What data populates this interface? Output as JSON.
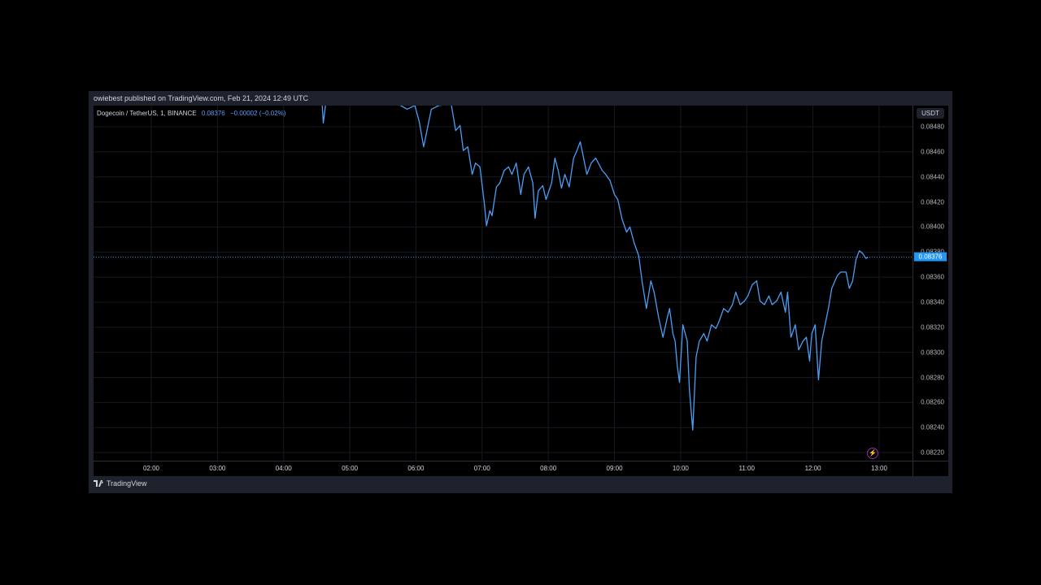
{
  "published": "owiebest published on TradingView.com, Feb 21, 2024 12:49 UTC",
  "legend": {
    "symbol": "Dogecoin / TetherUS, 1, BINANCE",
    "last": "0.08376",
    "change": "−0.00002 (−0.02%)"
  },
  "currency": "USDT",
  "footer_brand": "TradingView",
  "colors": {
    "line": "#4a9ff5",
    "last_tag": "#2196f3",
    "background": "#000000",
    "frame": "#1e222d"
  },
  "icons": [
    "tradingview-logo-icon",
    "lightning-icon"
  ],
  "chart_data": {
    "type": "line",
    "xlabel": "",
    "ylabel": "",
    "ylim": [
      0.08205,
      0.08508
    ],
    "grid": true,
    "last_price": "0.08376",
    "y_ticks": [
      "0.08480",
      "0.08460",
      "0.08440",
      "0.08420",
      "0.08400",
      "0.08380",
      "0.08360",
      "0.08340",
      "0.08320",
      "0.08300",
      "0.08280",
      "0.08260",
      "0.08240",
      "0.08220"
    ],
    "x_ticks": [
      "02:00",
      "03:00",
      "04:00",
      "05:00",
      "06:00",
      "07:00",
      "08:00",
      "09:00",
      "10:00",
      "11:00",
      "12:00",
      "13:00"
    ],
    "series": [
      {
        "points": [
          [
            "04:35",
            0.08497
          ],
          [
            "04:36",
            0.08483
          ],
          [
            "04:38",
            0.08497
          ],
          [
            "04:50",
            0.08525
          ],
          [
            "05:30",
            0.08525
          ],
          [
            "05:46",
            0.08497
          ],
          [
            "05:52",
            0.08494
          ],
          [
            "05:59",
            0.08497
          ],
          [
            "06:03",
            0.08484
          ],
          [
            "06:07",
            0.08464
          ],
          [
            "06:10",
            0.08477
          ],
          [
            "06:14",
            0.08494
          ],
          [
            "06:21",
            0.08497
          ],
          [
            "06:32",
            0.08498
          ],
          [
            "06:36",
            0.08477
          ],
          [
            "06:40",
            0.08481
          ],
          [
            "06:43",
            0.08461
          ],
          [
            "06:47",
            0.08464
          ],
          [
            "06:51",
            0.08442
          ],
          [
            "06:54",
            0.08451
          ],
          [
            "06:58",
            0.08448
          ],
          [
            "07:02",
            0.08419
          ],
          [
            "07:04",
            0.08401
          ],
          [
            "07:07",
            0.08413
          ],
          [
            "07:09",
            0.08409
          ],
          [
            "07:13",
            0.08432
          ],
          [
            "07:16",
            0.08435
          ],
          [
            "07:20",
            0.08445
          ],
          [
            "07:24",
            0.08448
          ],
          [
            "07:27",
            0.08442
          ],
          [
            "07:31",
            0.08451
          ],
          [
            "07:35",
            0.08426
          ],
          [
            "07:38",
            0.08442
          ],
          [
            "07:42",
            0.08448
          ],
          [
            "07:46",
            0.08435
          ],
          [
            "07:48",
            0.08407
          ],
          [
            "07:51",
            0.08429
          ],
          [
            "07:55",
            0.08433
          ],
          [
            "07:58",
            0.08422
          ],
          [
            "08:03",
            0.08435
          ],
          [
            "08:06",
            0.08455
          ],
          [
            "08:09",
            0.08445
          ],
          [
            "08:12",
            0.08431
          ],
          [
            "08:15",
            0.08442
          ],
          [
            "08:19",
            0.08432
          ],
          [
            "08:23",
            0.08455
          ],
          [
            "08:26",
            0.08461
          ],
          [
            "08:29",
            0.08468
          ],
          [
            "08:32",
            0.08455
          ],
          [
            "08:35",
            0.08442
          ],
          [
            "08:39",
            0.08451
          ],
          [
            "08:43",
            0.08455
          ],
          [
            "08:49",
            0.08445
          ],
          [
            "08:52",
            0.08442
          ],
          [
            "08:56",
            0.08437
          ],
          [
            "09:00",
            0.08426
          ],
          [
            "09:03",
            0.08422
          ],
          [
            "09:07",
            0.08406
          ],
          [
            "09:11",
            0.08396
          ],
          [
            "09:14",
            0.084
          ],
          [
            "09:18",
            0.08387
          ],
          [
            "09:22",
            0.08377
          ],
          [
            "09:25",
            0.08357
          ],
          [
            "09:29",
            0.08335
          ],
          [
            "09:33",
            0.08357
          ],
          [
            "09:36",
            0.08348
          ],
          [
            "09:40",
            0.08328
          ],
          [
            "09:44",
            0.08312
          ],
          [
            "09:48",
            0.08328
          ],
          [
            "09:50",
            0.08335
          ],
          [
            "09:53",
            0.08315
          ],
          [
            "09:55",
            0.08309
          ],
          [
            "09:57",
            0.08289
          ],
          [
            "09:59",
            0.08276
          ],
          [
            "10:02",
            0.08322
          ],
          [
            "10:06",
            0.08309
          ],
          [
            "10:08",
            0.0827
          ],
          [
            "10:11",
            0.08238
          ],
          [
            "10:14",
            0.08296
          ],
          [
            "10:17",
            0.08309
          ],
          [
            "10:21",
            0.08315
          ],
          [
            "10:24",
            0.08309
          ],
          [
            "10:28",
            0.08322
          ],
          [
            "10:32",
            0.08319
          ],
          [
            "10:35",
            0.08325
          ],
          [
            "10:39",
            0.08335
          ],
          [
            "10:43",
            0.08332
          ],
          [
            "10:47",
            0.08338
          ],
          [
            "10:50",
            0.08348
          ],
          [
            "10:54",
            0.08338
          ],
          [
            "10:58",
            0.08341
          ],
          [
            "11:01",
            0.08345
          ],
          [
            "11:05",
            0.08354
          ],
          [
            "11:09",
            0.08357
          ],
          [
            "11:12",
            0.08341
          ],
          [
            "11:16",
            0.08338
          ],
          [
            "11:20",
            0.08345
          ],
          [
            "11:23",
            0.08338
          ],
          [
            "11:27",
            0.08341
          ],
          [
            "11:31",
            0.08348
          ],
          [
            "11:35",
            0.08332
          ],
          [
            "11:37",
            0.08348
          ],
          [
            "11:40",
            0.08312
          ],
          [
            "11:44",
            0.08322
          ],
          [
            "11:47",
            0.08302
          ],
          [
            "11:51",
            0.08309
          ],
          [
            "11:54",
            0.08312
          ],
          [
            "11:57",
            0.08293
          ],
          [
            "11:59",
            0.08315
          ],
          [
            "12:02",
            0.08322
          ],
          [
            "12:05",
            0.08278
          ],
          [
            "12:08",
            0.08309
          ],
          [
            "12:11",
            0.08322
          ],
          [
            "12:14",
            0.08335
          ],
          [
            "12:17",
            0.08351
          ],
          [
            "12:20",
            0.08357
          ],
          [
            "12:22",
            0.08361
          ],
          [
            "12:25",
            0.08364
          ],
          [
            "12:30",
            0.08364
          ],
          [
            "12:33",
            0.08351
          ],
          [
            "12:36",
            0.08357
          ],
          [
            "12:39",
            0.08374
          ],
          [
            "12:42",
            0.08381
          ],
          [
            "12:45",
            0.08379
          ],
          [
            "12:48",
            0.08375
          ],
          [
            "12:50",
            0.08376
          ]
        ]
      }
    ]
  }
}
